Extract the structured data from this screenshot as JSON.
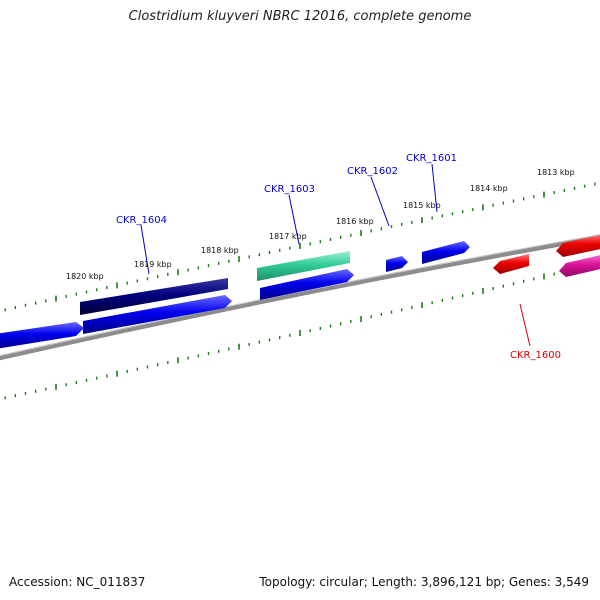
{
  "title": "Clostridium kluyveri NBRC 12016, complete genome",
  "footer": {
    "accession": "Accession: NC_011837",
    "summary": "Topology: circular; Length: 3,896,121 bp; Genes: 3,549"
  },
  "colors": {
    "backbone": "#888888",
    "ticks": "#1a7a1a",
    "forward_gene": "#0000ee",
    "highlight_gene": "#000080",
    "rna_gene": "#33cc99",
    "reverse_gene": "#ee0000",
    "reverse_gene_alt": "#dd1199",
    "forward_label": "#0000cc",
    "reverse_label": "#dd0000"
  },
  "kbp_labels": [
    "1813 kbp",
    "1814 kbp",
    "1815 kbp",
    "1816 kbp",
    "1817 kbp",
    "1818 kbp",
    "1819 kbp",
    "1820 kbp"
  ],
  "gene_labels": [
    {
      "id": "CKR_1600",
      "strand": "reverse"
    },
    {
      "id": "CKR_1601",
      "strand": "forward"
    },
    {
      "id": "CKR_1602",
      "strand": "forward"
    },
    {
      "id": "CKR_1603",
      "strand": "forward"
    },
    {
      "id": "CKR_1604",
      "strand": "forward"
    }
  ]
}
